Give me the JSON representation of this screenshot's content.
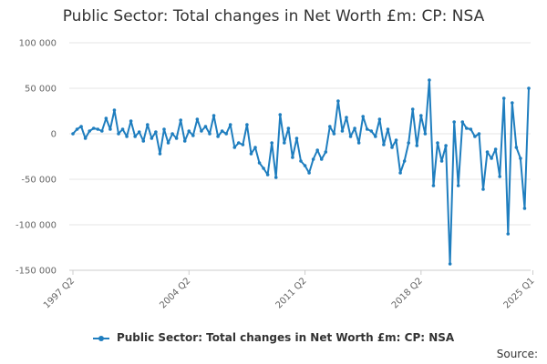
{
  "chart_data": {
    "type": "line",
    "title": "Public Sector: Total changes in Net Worth £m: CP: NSA",
    "xlabel": "",
    "ylabel": "",
    "ylim": [
      -150000,
      100000
    ],
    "yticks": [
      100000,
      50000,
      0,
      -50000,
      -100000,
      -150000
    ],
    "ytick_labels": [
      "100 000",
      "50 000",
      "0",
      "-50 000",
      "-100 000",
      "-150 000"
    ],
    "xtick_labels": [
      "1997 Q2",
      "2004 Q2",
      "2011 Q2",
      "2018 Q2",
      "2025 Q1"
    ],
    "xtick_positions": [
      0,
      28,
      56,
      84,
      111
    ],
    "grid": "horizontal",
    "legend_placement": "bottom",
    "series": [
      {
        "name": "Public Sector: Total changes in Net Worth £m: CP: NSA",
        "color": "#1f7ebf",
        "values": [
          0,
          5000,
          8000,
          -5000,
          3000,
          6000,
          5000,
          3000,
          17000,
          5000,
          26000,
          0,
          5000,
          -3000,
          14000,
          -3000,
          2000,
          -8000,
          10000,
          -5000,
          2000,
          -22000,
          5000,
          -10000,
          0,
          -5000,
          15000,
          -8000,
          3000,
          -2000,
          16000,
          3000,
          8000,
          0,
          20000,
          -3000,
          3000,
          0,
          10000,
          -15000,
          -10000,
          -12000,
          10000,
          -22000,
          -15000,
          -32000,
          -38000,
          -45000,
          -10000,
          -48000,
          21000,
          -10000,
          6000,
          -26000,
          -5000,
          -30000,
          -35000,
          -43000,
          -28000,
          -18000,
          -28000,
          -20000,
          8000,
          0,
          36000,
          3000,
          18000,
          -3000,
          6000,
          -10000,
          19000,
          5000,
          3000,
          -3000,
          16000,
          -12000,
          5000,
          -15000,
          -7000,
          -43000,
          -30000,
          -10000,
          27000,
          -13000,
          20000,
          0,
          59000,
          -57000,
          -10000,
          -30000,
          -13000,
          -143000,
          13000,
          -57000,
          13000,
          6000,
          5000,
          -3000,
          0,
          -61000,
          -20000,
          -27000,
          -17000,
          -47000,
          39000,
          -110000,
          34000,
          -15000,
          -27000,
          -82000,
          50000
        ]
      }
    ]
  },
  "legend": {
    "label": "Public Sector: Total changes in Net Worth £m: CP: NSA"
  },
  "footer": {
    "source_label": "Source:"
  }
}
